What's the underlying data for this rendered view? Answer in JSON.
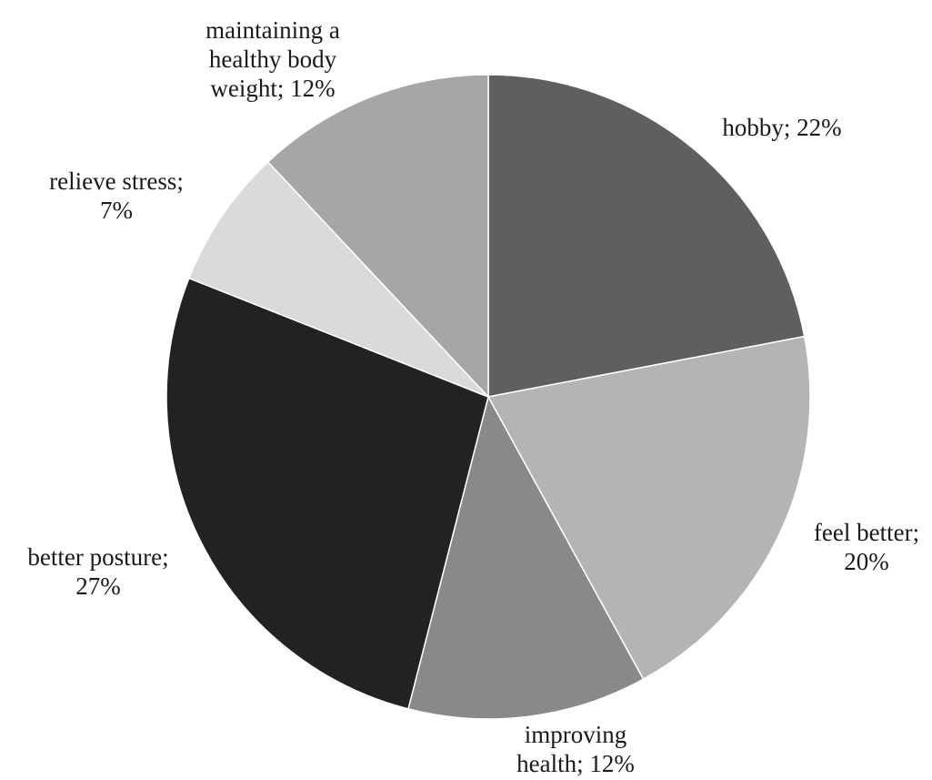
{
  "chart_data": {
    "type": "pie",
    "start_angle_deg": 0,
    "direction": "clockwise",
    "slices": [
      {
        "label": "hobby; 22%",
        "category": "hobby",
        "value": 22,
        "color": "#5f5f5f"
      },
      {
        "label": "feel better; 20%",
        "category": "feel better",
        "value": 20,
        "color": "#b4b4b4"
      },
      {
        "label": "improving health; 12%",
        "category": "improving health",
        "value": 12,
        "color": "#898989"
      },
      {
        "label": "better posture; 27%",
        "category": "better posture",
        "value": 27,
        "color": "#222222"
      },
      {
        "label": "relieve stress; 7%",
        "category": "relieve stress",
        "value": 7,
        "color": "#dadada"
      },
      {
        "label": "maintaining a healthy body weight; 12%",
        "category": "maintaining a healthy body weight",
        "value": 12,
        "color": "#a6a6a6"
      }
    ],
    "label_lines": [
      [
        "hobby; 22%"
      ],
      [
        "feel better;",
        "20%"
      ],
      [
        "improving",
        "health; 12%"
      ],
      [
        "better posture;",
        "27%"
      ],
      [
        "relieve stress;",
        "7%"
      ],
      [
        "maintaining a",
        "healthy body",
        "weight; 12%"
      ]
    ]
  }
}
